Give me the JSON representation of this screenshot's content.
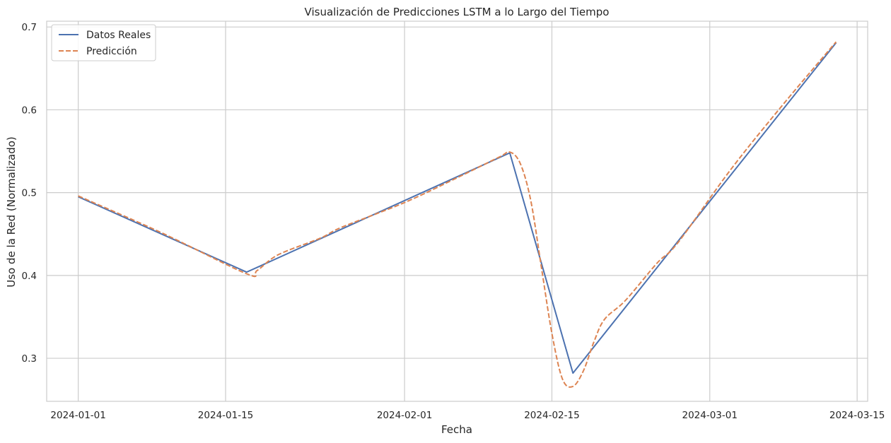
{
  "colors": {
    "background": "#ffffff",
    "grid": "#cccccc",
    "spine": "#cccccc",
    "real": "#4c72b0",
    "pred": "#dd8452"
  },
  "chart_data": {
    "type": "line",
    "title": "Visualización de Predicciones LSTM a lo Largo del Tiempo",
    "xlabel": "Fecha",
    "ylabel": "Uso de la Red (Normalizado)",
    "xlim": [
      "2023-12-29",
      "2024-03-16"
    ],
    "ylim": [
      0.248,
      0.707
    ],
    "x_ticks": [
      "2024-01-01",
      "2024-01-15",
      "2024-02-01",
      "2024-02-15",
      "2024-03-01",
      "2024-03-15"
    ],
    "y_ticks": [
      0.3,
      0.4,
      0.5,
      0.6,
      0.7
    ],
    "y_tick_labels": [
      "0.3",
      "0.4",
      "0.5",
      "0.6",
      "0.7"
    ],
    "grid": true,
    "legend_position": "upper-left",
    "series": [
      {
        "name": "Datos Reales",
        "style": "solid",
        "x": [
          "2024-01-01",
          "2024-01-17",
          "2024-02-11",
          "2024-02-17",
          "2024-03-13"
        ],
        "y": [
          0.495,
          0.404,
          0.548,
          0.282,
          0.681
        ]
      },
      {
        "name": "Predicción",
        "style": "dashed",
        "x": [
          "2024-01-01",
          "2024-01-09",
          "2024-01-17",
          "2024-01-18",
          "2024-01-20",
          "2024-01-24",
          "2024-01-26",
          "2024-02-01",
          "2024-02-06",
          "2024-02-10",
          "2024-02-11",
          "2024-02-12",
          "2024-02-13",
          "2024-02-14",
          "2024-02-15",
          "2024-02-16",
          "2024-02-17",
          "2024-02-18",
          "2024-02-19",
          "2024-02-20",
          "2024-02-22",
          "2024-02-25",
          "2024-02-27",
          "2024-03-03",
          "2024-03-08",
          "2024-03-13"
        ],
        "y": [
          0.496,
          0.451,
          0.402,
          0.406,
          0.425,
          0.445,
          0.458,
          0.488,
          0.518,
          0.543,
          0.549,
          0.535,
          0.49,
          0.41,
          0.33,
          0.275,
          0.266,
          0.285,
          0.32,
          0.347,
          0.37,
          0.415,
          0.44,
          0.528,
          0.607,
          0.682
        ]
      }
    ]
  }
}
